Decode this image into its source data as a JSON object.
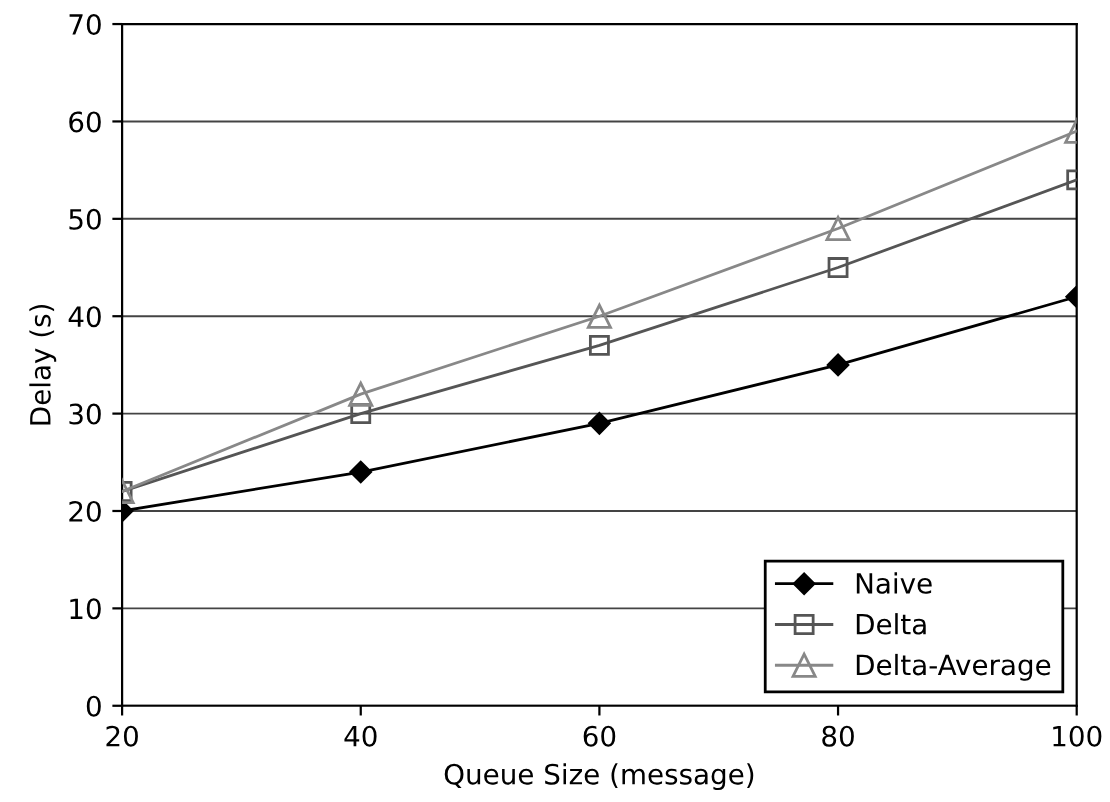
{
  "chart_data": {
    "type": "line",
    "xlabel": "Queue Size (message)",
    "ylabel": "Delay (s)",
    "x": [
      20,
      40,
      60,
      80,
      100
    ],
    "series": [
      {
        "name": "Naive",
        "color": "#000000",
        "marker": "diamond",
        "values": [
          20,
          24,
          29,
          35,
          42
        ]
      },
      {
        "name": "Delta",
        "color": "#555555",
        "marker": "square",
        "values": [
          22,
          30,
          37,
          45,
          54
        ]
      },
      {
        "name": "Delta-Average",
        "color": "#888888",
        "marker": "triangle",
        "values": [
          22,
          32,
          40,
          49,
          59
        ]
      }
    ],
    "xlim": [
      20,
      100
    ],
    "xticks": [
      20,
      40,
      60,
      80,
      100
    ],
    "ylim": [
      0,
      70
    ],
    "yticks": [
      0,
      10,
      20,
      30,
      40,
      50,
      60,
      70
    ],
    "grid": "y",
    "legend": "bottom right",
    "line_style": "solid"
  }
}
